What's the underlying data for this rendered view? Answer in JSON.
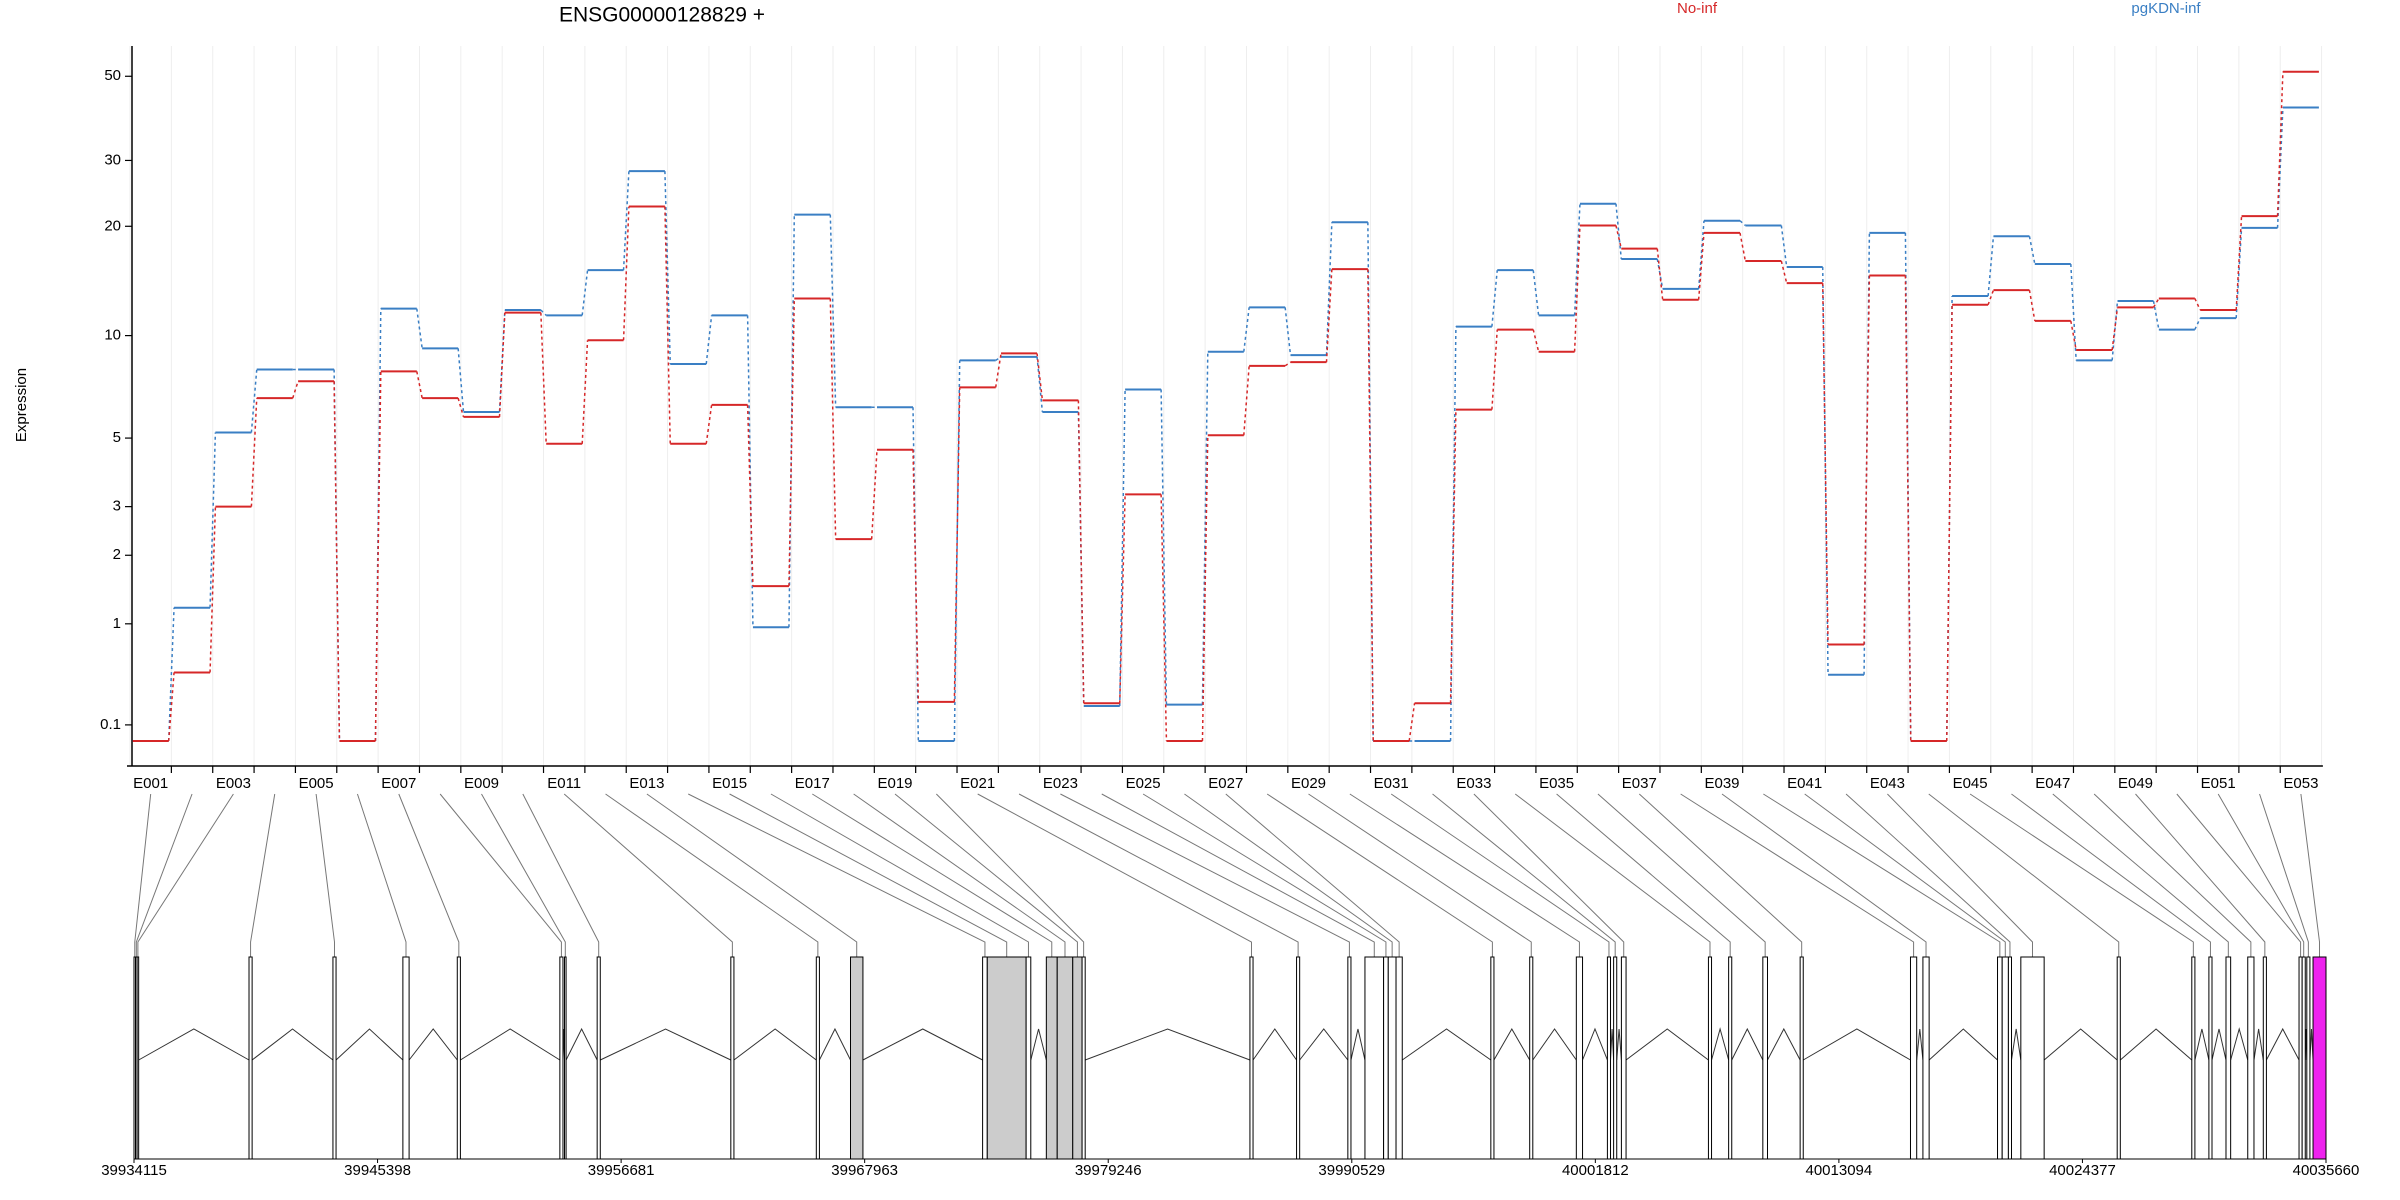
{
  "chart_data": {
    "type": "step",
    "title": "ENSG00000128829 +",
    "ylabel": "Expression",
    "yscale": "log1p",
    "ylim": [
      0,
      60
    ],
    "yticks": [
      0.1,
      1,
      2,
      3,
      5,
      10,
      20,
      30,
      50
    ],
    "grid": true,
    "legend": "top-right",
    "categories": [
      "E001",
      null,
      "E003",
      null,
      "E005",
      null,
      "E007",
      null,
      "E009",
      null,
      "E011",
      null,
      "E013",
      null,
      "E015",
      null,
      "E017",
      null,
      "E019",
      null,
      "E021",
      null,
      "E023",
      null,
      "E025",
      null,
      "E027",
      null,
      "E029",
      null,
      "E031",
      null,
      "E033",
      null,
      "E035",
      null,
      "E037",
      null,
      "E039",
      null,
      "E041",
      null,
      "E043",
      null,
      "E045",
      null,
      "E047",
      null,
      "E049",
      null,
      "E051",
      null,
      "E053"
    ],
    "series": [
      {
        "name": "pgKDN-inf",
        "color": "#3a7fc4",
        "values": [
          0,
          1.2,
          5.2,
          8.0,
          8.0,
          0,
          11.9,
          9.2,
          6.0,
          11.8,
          11.4,
          15.2,
          28.1,
          8.3,
          11.4,
          0.96,
          21.5,
          6.2,
          6.2,
          0,
          8.5,
          8.7,
          6.0,
          0.23,
          7.0,
          0.24,
          9.0,
          12.0,
          8.8,
          20.5,
          0,
          0,
          10.6,
          15.2,
          11.4,
          23,
          16.3,
          13.5,
          20.7,
          20.1,
          15.5,
          0.48,
          19.2,
          0,
          12.9,
          18.8,
          15.8,
          8.5,
          12.5,
          10.4,
          11.2,
          19.8,
          41.4
        ]
      },
      {
        "name": "No-inf",
        "color": "#d62728",
        "values": [
          0,
          0.5,
          3.0,
          6.6,
          7.4,
          0,
          7.9,
          6.6,
          5.8,
          11.6,
          4.8,
          9.7,
          22.6,
          4.8,
          6.3,
          1.5,
          12.7,
          2.3,
          4.6,
          0.26,
          7.1,
          8.9,
          6.5,
          0.25,
          3.3,
          0,
          5.1,
          8.2,
          8.4,
          15.3,
          0,
          0.25,
          6.1,
          10.4,
          9.0,
          20.1,
          17.4,
          12.6,
          19.2,
          16.1,
          14.0,
          0.77,
          14.7,
          0,
          12.2,
          13.4,
          11.0,
          9.1,
          12.0,
          12.7,
          11.8,
          21.3,
          51.4
        ]
      }
    ],
    "gene_model": {
      "xlim": [
        39934115,
        40035660
      ],
      "xticks": [
        39934115,
        39945398,
        39956681,
        39967963,
        39979246,
        39990529,
        40001812,
        40013094,
        40024377,
        40035660
      ],
      "exons": [
        {
          "start": 39934115,
          "end": 39934187,
          "color": "#ffffff"
        },
        {
          "start": 39934187,
          "end": 39934259,
          "color": "#ffffff"
        },
        {
          "start": 39934259,
          "end": 39934331,
          "color": "#ffffff"
        },
        {
          "start": 39939443,
          "end": 39939587,
          "color": "#ffffff"
        },
        {
          "start": 39943331,
          "end": 39943475,
          "color": "#ffffff"
        },
        {
          "start": 39946571,
          "end": 39946859,
          "color": "#ffffff"
        },
        {
          "start": 39949091,
          "end": 39949235,
          "color": "#ffffff"
        },
        {
          "start": 39953843,
          "end": 39953987,
          "color": "#ffffff"
        },
        {
          "start": 39954059,
          "end": 39954131,
          "color": "#ffffff"
        },
        {
          "start": 39955571,
          "end": 39955715,
          "color": "#ffffff"
        },
        {
          "start": 39961763,
          "end": 39961907,
          "color": "#ffffff"
        },
        {
          "start": 39965723,
          "end": 39965867,
          "color": "#ffffff"
        },
        {
          "start": 39967307,
          "end": 39967883,
          "color": "#cccccc"
        },
        {
          "start": 39973427,
          "end": 39973643,
          "color": "#ffffff"
        },
        {
          "start": 39973643,
          "end": 39975443,
          "color": "#cccccc"
        },
        {
          "start": 39975443,
          "end": 39975659,
          "color": "#ffffff"
        },
        {
          "start": 39976379,
          "end": 39976883,
          "color": "#cccccc"
        },
        {
          "start": 39976883,
          "end": 39977603,
          "color": "#cccccc"
        },
        {
          "start": 39977603,
          "end": 39978035,
          "color": "#cccccc"
        },
        {
          "start": 39978035,
          "end": 39978179,
          "color": "#ffffff"
        },
        {
          "start": 39985811,
          "end": 39985955,
          "color": "#ffffff"
        },
        {
          "start": 39987971,
          "end": 39988115,
          "color": "#ffffff"
        },
        {
          "start": 39990347,
          "end": 39990491,
          "color": "#ffffff"
        },
        {
          "start": 39991139,
          "end": 39992003,
          "color": "#ffffff"
        },
        {
          "start": 39992003,
          "end": 39992219,
          "color": "#ffffff"
        },
        {
          "start": 39992219,
          "end": 39992579,
          "color": "#ffffff"
        },
        {
          "start": 39992579,
          "end": 39992867,
          "color": "#ffffff"
        },
        {
          "start": 39996971,
          "end": 39997115,
          "color": "#ffffff"
        },
        {
          "start": 39998771,
          "end": 39998915,
          "color": "#ffffff"
        },
        {
          "start": 40000931,
          "end": 40001219,
          "color": "#ffffff"
        },
        {
          "start": 40002371,
          "end": 40002515,
          "color": "#ffffff"
        },
        {
          "start": 40002659,
          "end": 40002803,
          "color": "#ffffff"
        },
        {
          "start": 40003019,
          "end": 40003235,
          "color": "#ffffff"
        },
        {
          "start": 40007051,
          "end": 40007195,
          "color": "#ffffff"
        },
        {
          "start": 40007987,
          "end": 40008131,
          "color": "#ffffff"
        },
        {
          "start": 40009571,
          "end": 40009787,
          "color": "#ffffff"
        },
        {
          "start": 40011299,
          "end": 40011443,
          "color": "#ffffff"
        },
        {
          "start": 40016411,
          "end": 40016699,
          "color": "#ffffff"
        },
        {
          "start": 40016987,
          "end": 40017275,
          "color": "#ffffff"
        },
        {
          "start": 40020443,
          "end": 40020659,
          "color": "#ffffff"
        },
        {
          "start": 40020659,
          "end": 40020947,
          "color": "#ffffff"
        },
        {
          "start": 40020947,
          "end": 40021091,
          "color": "#ffffff"
        },
        {
          "start": 40021523,
          "end": 40022603,
          "color": "#ffffff"
        },
        {
          "start": 40025987,
          "end": 40026131,
          "color": "#ffffff"
        },
        {
          "start": 40029443,
          "end": 40029587,
          "color": "#ffffff"
        },
        {
          "start": 40030235,
          "end": 40030379,
          "color": "#ffffff"
        },
        {
          "start": 40031027,
          "end": 40031243,
          "color": "#ffffff"
        },
        {
          "start": 40032035,
          "end": 40032323,
          "color": "#ffffff"
        },
        {
          "start": 40032755,
          "end": 40032899,
          "color": "#ffffff"
        },
        {
          "start": 40034411,
          "end": 40034555,
          "color": "#ffffff"
        },
        {
          "start": 40034555,
          "end": 40034699,
          "color": "#ffffff"
        },
        {
          "start": 40034771,
          "end": 40034915,
          "color": "#ffffff"
        },
        {
          "start": 40035059,
          "end": 40035660,
          "color": "#ee22ee"
        }
      ]
    }
  }
}
